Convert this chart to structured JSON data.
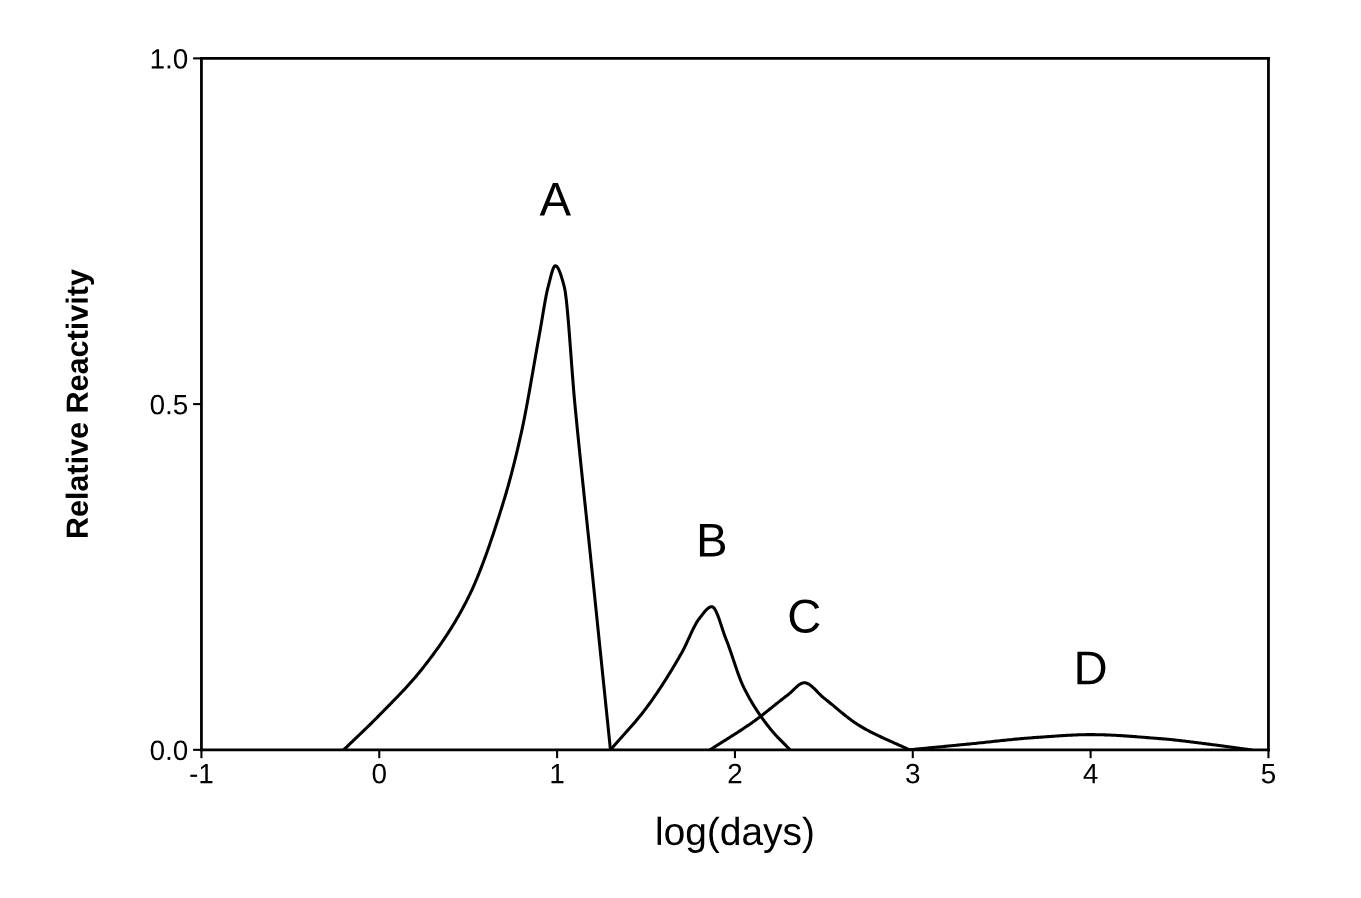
{
  "chart_data": {
    "type": "line",
    "xlabel": "log(days)",
    "ylabel": "Relative Reactivity",
    "xlim": [
      -1,
      5
    ],
    "xticks": [
      -1,
      0,
      1,
      2,
      3,
      4,
      5
    ],
    "ylim": [
      0,
      1
    ],
    "yticks": [
      {
        "value": 0,
        "label": "0.0"
      },
      {
        "value": 0.5,
        "label": "0.5"
      },
      {
        "value": 1,
        "label": "1.0"
      }
    ],
    "grid": false,
    "marker": "none",
    "line_style": "solid",
    "series": [
      {
        "name": "A",
        "color": "#000000",
        "x": [
          -0.2,
          0,
          0.25,
          0.5,
          0.7,
          0.8,
          0.9,
          0.95,
          0.99,
          1.04,
          1.1,
          1.2,
          1.3
        ],
        "values": [
          0,
          0.05,
          0.12,
          0.22,
          0.36,
          0.46,
          0.6,
          0.67,
          0.7,
          0.67,
          0.5,
          0.25,
          0
        ]
      },
      {
        "name": "B",
        "color": "#000000",
        "x": [
          1.3,
          1.5,
          1.7,
          1.8,
          1.87,
          1.95,
          2.05,
          2.2,
          2.31
        ],
        "values": [
          0,
          0.06,
          0.14,
          0.19,
          0.207,
          0.16,
          0.09,
          0.03,
          0
        ]
      },
      {
        "name": "C",
        "color": "#000000",
        "x": [
          1.86,
          2.1,
          2.3,
          2.39,
          2.5,
          2.7,
          2.98
        ],
        "values": [
          0,
          0.04,
          0.08,
          0.097,
          0.075,
          0.035,
          0
        ]
      },
      {
        "name": "D",
        "color": "#000000",
        "x": [
          2.98,
          3.3,
          3.7,
          4.0,
          4.4,
          4.7,
          4.9
        ],
        "values": [
          0,
          0.008,
          0.018,
          0.022,
          0.016,
          0.007,
          0
        ]
      }
    ]
  }
}
